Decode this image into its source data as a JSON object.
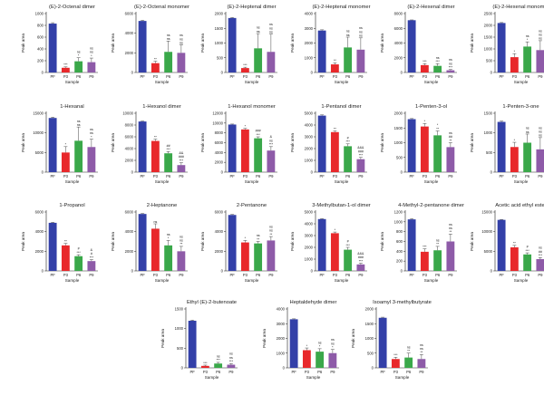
{
  "colors": {
    "PF": "#3340a8",
    "P3": "#e8282b",
    "P6": "#3aa84a",
    "P9": "#8e5ba8"
  },
  "chart_data": [
    {
      "type": "bar",
      "title": "(E)-2-Octenal dimer",
      "ylabel": "Peak area",
      "xlabel": "Sample",
      "categories": [
        "PF",
        "P3",
        "P6",
        "P9"
      ],
      "ylim": [
        0,
        1000
      ],
      "yticks": [
        0,
        200,
        400,
        600,
        800,
        1000
      ],
      "values": [
        830,
        80,
        190,
        175
      ],
      "errors": [
        15,
        15,
        60,
        70
      ],
      "annotations": [
        [],
        [
          "***"
        ],
        [
          "ns",
          "*"
        ],
        [
          "ns",
          "ns",
          "*"
        ]
      ]
    },
    {
      "type": "bar",
      "title": "(E)-2-Octenal monomer",
      "ylabel": "Peak area",
      "xlabel": "Sample",
      "categories": [
        "PF",
        "P3",
        "P6",
        "P9"
      ],
      "ylim": [
        0,
        6000
      ],
      "yticks": [
        0,
        2000,
        4000,
        6000
      ],
      "values": [
        5250,
        950,
        2100,
        2000
      ],
      "errors": [
        60,
        200,
        1100,
        800
      ],
      "annotations": [
        [],
        [
          "**"
        ],
        [
          "ns",
          "ns"
        ],
        [
          "ns",
          "ns",
          "ns"
        ]
      ]
    },
    {
      "type": "bar",
      "title": "(E)-2-Heptenal dimer",
      "ylabel": "Peak area",
      "xlabel": "Sample",
      "categories": [
        "PF",
        "P3",
        "P6",
        "P9"
      ],
      "ylim": [
        0,
        2000
      ],
      "yticks": [
        0,
        500,
        1000,
        1500,
        2000
      ],
      "values": [
        1850,
        150,
        820,
        700
      ],
      "errors": [
        20,
        30,
        500,
        600
      ],
      "annotations": [
        [],
        [
          "***"
        ],
        [
          "ns",
          "ns"
        ],
        [
          "ns",
          "ns",
          "ns"
        ]
      ]
    },
    {
      "type": "bar",
      "title": "(E)-2-Heptenal monomer",
      "ylabel": "Peak area",
      "xlabel": "Sample",
      "categories": [
        "PF",
        "P3",
        "P6",
        "P9"
      ],
      "ylim": [
        0,
        4000
      ],
      "yticks": [
        0,
        1000,
        2000,
        3000,
        4000
      ],
      "values": [
        2850,
        550,
        1700,
        1550
      ],
      "errors": [
        50,
        100,
        700,
        800
      ],
      "annotations": [
        [],
        [
          "**"
        ],
        [
          "ns",
          "ns"
        ],
        [
          "ns",
          "ns",
          "ns"
        ]
      ]
    },
    {
      "type": "bar",
      "title": "(E)-2-Hexenal dimer",
      "ylabel": "Peak area",
      "xlabel": "Sample",
      "categories": [
        "PF",
        "P3",
        "P6",
        "P9"
      ],
      "ylim": [
        0,
        8000
      ],
      "yticks": [
        0,
        2000,
        4000,
        6000,
        8000
      ],
      "values": [
        7100,
        1000,
        900,
        300
      ],
      "errors": [
        40,
        200,
        300,
        100
      ],
      "annotations": [
        [],
        [
          "***"
        ],
        [
          "ns",
          "***"
        ],
        [
          "ns",
          "ns",
          "***"
        ]
      ]
    },
    {
      "type": "bar",
      "title": "(E)-2-Hexenal monomer",
      "ylabel": "Peak area",
      "xlabel": "Sample",
      "categories": [
        "PF",
        "P3",
        "P6",
        "P9"
      ],
      "ylim": [
        0,
        2500
      ],
      "yticks": [
        0,
        500,
        1000,
        1500,
        2000,
        2500
      ],
      "values": [
        2100,
        650,
        1100,
        950
      ],
      "errors": [
        20,
        150,
        200,
        400
      ],
      "annotations": [
        [],
        [
          "*"
        ],
        [
          "ns",
          "*"
        ],
        [
          "ns",
          "ns",
          "ns"
        ]
      ]
    },
    {
      "type": "bar",
      "title": "1-Hexanal",
      "ylabel": "Peak area",
      "xlabel": "Sample",
      "categories": [
        "PF",
        "P3",
        "P6",
        "P9"
      ],
      "ylim": [
        0,
        15000
      ],
      "yticks": [
        0,
        5000,
        10000,
        15000
      ],
      "values": [
        13800,
        5000,
        8000,
        6400
      ],
      "errors": [
        200,
        1500,
        3500,
        2000
      ],
      "annotations": [
        [],
        [
          "*"
        ],
        [
          "ns",
          "ns"
        ],
        [
          "ns",
          "ns",
          "*"
        ]
      ]
    },
    {
      "type": "bar",
      "title": "1-Hexanol dimer",
      "ylabel": "Peak area",
      "xlabel": "Sample",
      "categories": [
        "PF",
        "P3",
        "P6",
        "P9"
      ],
      "ylim": [
        0,
        10000
      ],
      "yticks": [
        0,
        2000,
        4000,
        6000,
        8000,
        10000
      ],
      "values": [
        8600,
        5300,
        3200,
        1200
      ],
      "errors": [
        80,
        300,
        300,
        400
      ],
      "annotations": [
        [],
        [
          "**"
        ],
        [
          "##",
          "***"
        ],
        [
          "&&",
          "###",
          "***"
        ]
      ]
    },
    {
      "type": "bar",
      "title": "1-Hexanol monomer",
      "ylabel": "Peak area",
      "xlabel": "Sample",
      "categories": [
        "PF",
        "P3",
        "P6",
        "P9"
      ],
      "ylim": [
        0,
        12000
      ],
      "yticks": [
        0,
        2000,
        4000,
        6000,
        8000,
        10000,
        12000
      ],
      "values": [
        9700,
        8700,
        6900,
        4400
      ],
      "errors": [
        100,
        200,
        300,
        800
      ],
      "annotations": [
        [],
        [
          "*"
        ],
        [
          "###",
          "***"
        ],
        [
          "&",
          "ns",
          "***"
        ]
      ]
    },
    {
      "type": "bar",
      "title": "1-Pentanol dimer",
      "ylabel": "Peak area",
      "xlabel": "Sample",
      "categories": [
        "PF",
        "P3",
        "P6",
        "P9"
      ],
      "ylim": [
        0,
        5000
      ],
      "yticks": [
        0,
        1000,
        2000,
        3000,
        4000,
        5000
      ],
      "values": [
        4800,
        3400,
        2200,
        1100
      ],
      "errors": [
        60,
        100,
        200,
        150
      ],
      "annotations": [
        [],
        [
          "**"
        ],
        [
          "#",
          "***"
        ],
        [
          "&&&",
          "###",
          "***"
        ]
      ]
    },
    {
      "type": "bar",
      "title": "1-Penten-3-ol",
      "ylabel": "Peak area",
      "xlabel": "Sample",
      "categories": [
        "PF",
        "P3",
        "P6",
        "P9"
      ],
      "ylim": [
        0,
        2000
      ],
      "yticks": [
        0,
        500,
        1000,
        1500,
        2000
      ],
      "values": [
        1800,
        1550,
        1250,
        850
      ],
      "errors": [
        20,
        100,
        150,
        150
      ],
      "annotations": [
        [],
        [
          "*"
        ],
        [
          "*",
          "**"
        ],
        [
          "ns",
          "##",
          "**"
        ]
      ]
    },
    {
      "type": "bar",
      "title": "1-Penten-3-one",
      "ylabel": "Peak area",
      "xlabel": "Sample",
      "categories": [
        "PF",
        "P3",
        "P6",
        "P9"
      ],
      "ylim": [
        0,
        1500
      ],
      "yticks": [
        0,
        500,
        1000,
        1500
      ],
      "values": [
        1280,
        640,
        750,
        580
      ],
      "errors": [
        20,
        120,
        220,
        300
      ],
      "annotations": [
        [],
        [
          "*"
        ],
        [
          "ns",
          "ns"
        ],
        [
          "ns",
          "ns",
          "ns"
        ]
      ]
    },
    {
      "type": "bar",
      "title": "1-Propanol",
      "ylabel": "Peak area",
      "xlabel": "Sample",
      "categories": [
        "PF",
        "P3",
        "P6",
        "P9"
      ],
      "ylim": [
        0,
        6000
      ],
      "yticks": [
        0,
        2000,
        4000,
        6000
      ],
      "values": [
        4900,
        2600,
        1500,
        1000
      ],
      "errors": [
        60,
        200,
        150,
        150
      ],
      "annotations": [
        [],
        [
          "**"
        ],
        [
          "#",
          "***"
        ],
        [
          "&",
          "#",
          "***"
        ]
      ]
    },
    {
      "type": "bar",
      "title": "2-Heptanone",
      "ylabel": "Peak area",
      "xlabel": "Sample",
      "categories": [
        "PF",
        "P3",
        "P6",
        "P9"
      ],
      "ylim": [
        0,
        6000
      ],
      "yticks": [
        0,
        2000,
        4000,
        6000
      ],
      "values": [
        5800,
        4300,
        2600,
        2000
      ],
      "errors": [
        50,
        500,
        500,
        500
      ],
      "annotations": [
        [],
        [
          "ns"
        ],
        [
          "ns",
          "*"
        ],
        [
          "ns",
          "ns",
          "**"
        ]
      ]
    },
    {
      "type": "bar",
      "title": "2-Pentanone",
      "ylabel": "Peak area",
      "xlabel": "Sample",
      "categories": [
        "PF",
        "P3",
        "P6",
        "P9"
      ],
      "ylim": [
        0,
        6000
      ],
      "yticks": [
        0,
        2000,
        4000,
        6000
      ],
      "values": [
        5700,
        2900,
        2800,
        3100
      ],
      "errors": [
        50,
        200,
        200,
        400
      ],
      "annotations": [
        [],
        [
          "*"
        ],
        [
          "ns",
          "**"
        ],
        [
          "ns",
          "ns",
          "**"
        ]
      ]
    },
    {
      "type": "bar",
      "title": "3-Methylbutan-1-ol dimer",
      "ylabel": "Peak area",
      "xlabel": "Sample",
      "categories": [
        "PF",
        "P3",
        "P6",
        "P9"
      ],
      "ylim": [
        0,
        5000
      ],
      "yticks": [
        0,
        1000,
        2000,
        3000,
        4000,
        5000
      ],
      "values": [
        4400,
        3200,
        1800,
        550
      ],
      "errors": [
        40,
        100,
        200,
        100
      ],
      "annotations": [
        [],
        [
          "*"
        ],
        [
          "#",
          "***"
        ],
        [
          "&&&",
          "###",
          "***"
        ]
      ]
    },
    {
      "type": "bar",
      "title": "4-Methyl-2-pentanone dimer",
      "ylabel": "Peak area",
      "xlabel": "Sample",
      "categories": [
        "PF",
        "P3",
        "P6",
        "P9"
      ],
      "ylim": [
        0,
        1200
      ],
      "yticks": [
        0,
        200,
        400,
        600,
        800,
        1000,
        1200
      ],
      "values": [
        1050,
        390,
        420,
        600
      ],
      "errors": [
        15,
        60,
        80,
        150
      ],
      "annotations": [
        [],
        [
          "***"
        ],
        [
          "ns",
          "**"
        ],
        [
          "ns",
          "ns",
          "**"
        ]
      ]
    },
    {
      "type": "bar",
      "title": "Acetic acid ethyl ester",
      "ylabel": "Peak area",
      "xlabel": "Sample",
      "categories": [
        "PF",
        "P3",
        "P6",
        "P9"
      ],
      "ylim": [
        0,
        15000
      ],
      "yticks": [
        0,
        5000,
        10000,
        15000
      ],
      "values": [
        13000,
        6000,
        4200,
        3000
      ],
      "errors": [
        100,
        500,
        400,
        400
      ],
      "annotations": [
        [],
        [
          "**"
        ],
        [
          "#",
          "***"
        ],
        [
          "ns",
          "##",
          "***"
        ]
      ]
    },
    {
      "type": "bar",
      "title": "Ethyl (E)-2-butenoate",
      "ylabel": "Peak area",
      "xlabel": "Sample",
      "categories": [
        "PF",
        "P3",
        "P6",
        "P9"
      ],
      "ylim": [
        0,
        1500
      ],
      "yticks": [
        0,
        500,
        1000,
        1500
      ],
      "values": [
        1200,
        50,
        110,
        80
      ],
      "errors": [
        15,
        20,
        30,
        30
      ],
      "annotations": [
        [],
        [
          "***"
        ],
        [
          "ns",
          "***"
        ],
        [
          "ns",
          "ns",
          "***"
        ]
      ]
    },
    {
      "type": "bar",
      "title": "Heptaldehyde dimer",
      "ylabel": "Peak area",
      "xlabel": "Sample",
      "categories": [
        "PF",
        "P3",
        "P6",
        "P9"
      ],
      "ylim": [
        0,
        4000
      ],
      "yticks": [
        0,
        1000,
        2000,
        3000,
        4000
      ],
      "values": [
        3300,
        1200,
        1100,
        1000
      ],
      "errors": [
        30,
        150,
        200,
        250
      ],
      "annotations": [
        [],
        [
          "*"
        ],
        [
          "ns",
          "*"
        ],
        [
          "ns",
          "ns",
          "*"
        ]
      ]
    },
    {
      "type": "bar",
      "title": "Isoamyl 3-methylbutyrate",
      "ylabel": "Peak area",
      "xlabel": "Sample",
      "categories": [
        "PF",
        "P3",
        "P6",
        "P9"
      ],
      "ylim": [
        0,
        2000
      ],
      "yticks": [
        0,
        500,
        1000,
        1500,
        2000
      ],
      "values": [
        1700,
        300,
        350,
        300
      ],
      "errors": [
        20,
        60,
        150,
        150
      ],
      "annotations": [
        [],
        [
          "***"
        ],
        [
          "ns",
          "**"
        ],
        [
          "ns",
          "ns",
          "**"
        ]
      ]
    }
  ]
}
